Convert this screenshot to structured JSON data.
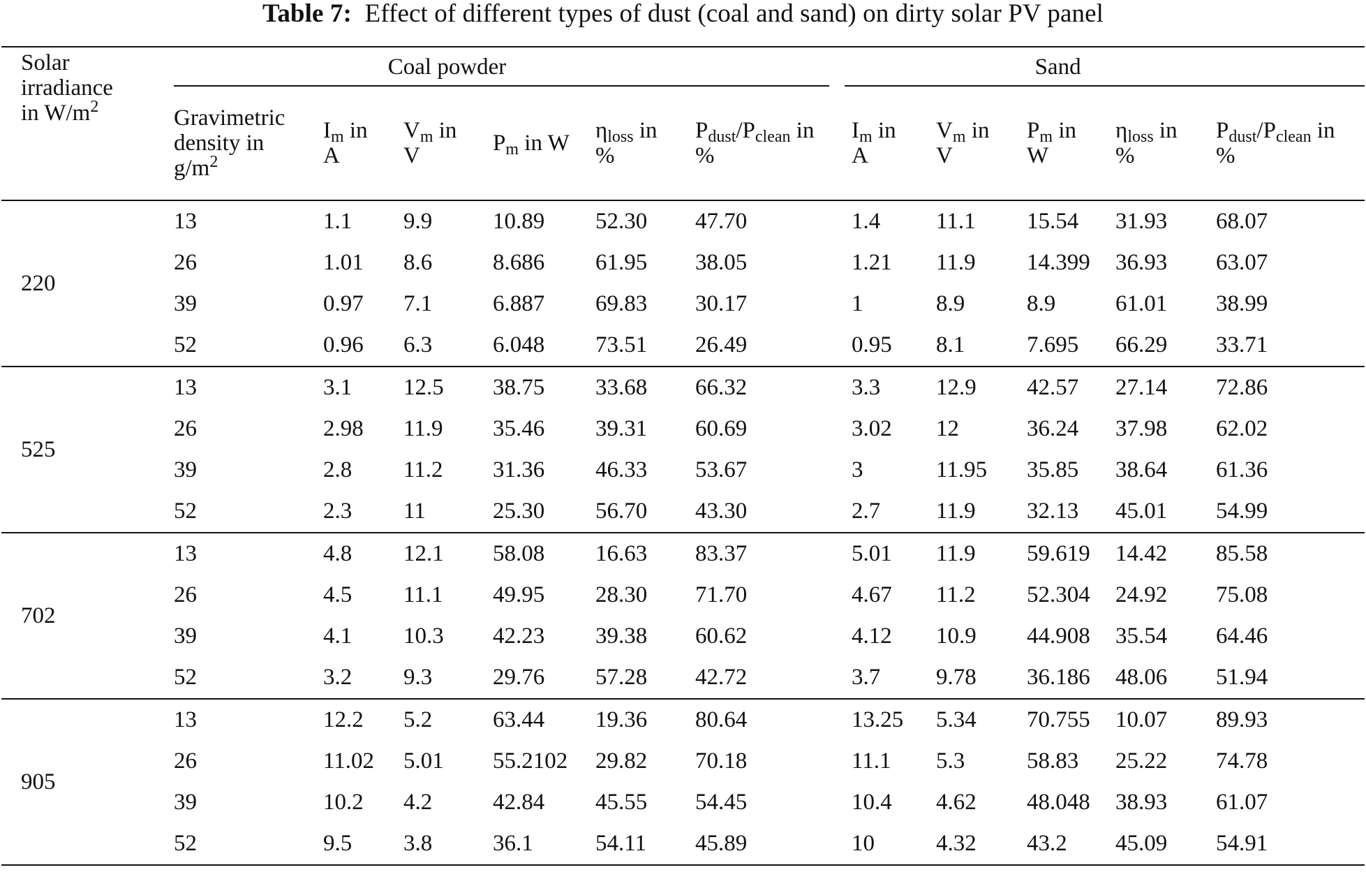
{
  "title": {
    "label": "Table 7:",
    "text": "Effect of different types of dust (coal and sand) on dirty solar PV panel"
  },
  "header": {
    "irradiance": {
      "line1": "Solar",
      "line2": "irradiance",
      "line3": "in W/m",
      "sup": "2"
    },
    "coal_group": "Coal powder",
    "sand_group": "Sand",
    "density": {
      "line1": "Gravimetric",
      "line2": "density in",
      "line3": "g/m",
      "sup": "2"
    },
    "im": {
      "sym": "I",
      "sub": "m",
      "unit_a": " in",
      "unit_b": "A"
    },
    "vm": {
      "sym": "V",
      "sub": "m",
      "unit_a": " in",
      "unit_b": "V"
    },
    "pm_coal": {
      "sym": "P",
      "sub": "m",
      "unit": " in W"
    },
    "pm_sand": {
      "sym": "P",
      "sub": "m",
      "unit_a": " in",
      "unit_b": "W"
    },
    "eta": {
      "sym": "η",
      "sub": "loss",
      "unit_a": " in",
      "unit_b": "%"
    },
    "ratio": {
      "sym1": "P",
      "sub1": "dust",
      "slash": "/P",
      "sub2": "clean",
      "unit_a": " in",
      "unit_b": "%"
    }
  },
  "groups": [
    {
      "irradiance": "220",
      "rows": [
        [
          "13",
          "1.1",
          "9.9",
          "10.89",
          "52.30",
          "47.70",
          "1.4",
          "11.1",
          "15.54",
          "31.93",
          "68.07"
        ],
        [
          "26",
          "1.01",
          "8.6",
          "8.686",
          "61.95",
          "38.05",
          "1.21",
          "11.9",
          "14.399",
          "36.93",
          "63.07"
        ],
        [
          "39",
          "0.97",
          "7.1",
          "6.887",
          "69.83",
          "30.17",
          "1",
          "8.9",
          "8.9",
          "61.01",
          "38.99"
        ],
        [
          "52",
          "0.96",
          "6.3",
          "6.048",
          "73.51",
          "26.49",
          "0.95",
          "8.1",
          "7.695",
          "66.29",
          "33.71"
        ]
      ]
    },
    {
      "irradiance": "525",
      "rows": [
        [
          "13",
          "3.1",
          "12.5",
          "38.75",
          "33.68",
          "66.32",
          "3.3",
          "12.9",
          "42.57",
          "27.14",
          "72.86"
        ],
        [
          "26",
          "2.98",
          "11.9",
          "35.46",
          "39.31",
          "60.69",
          "3.02",
          "12",
          "36.24",
          "37.98",
          "62.02"
        ],
        [
          "39",
          "2.8",
          "11.2",
          "31.36",
          "46.33",
          "53.67",
          "3",
          "11.95",
          "35.85",
          "38.64",
          "61.36"
        ],
        [
          "52",
          "2.3",
          "11",
          "25.30",
          "56.70",
          "43.30",
          "2.7",
          "11.9",
          "32.13",
          "45.01",
          "54.99"
        ]
      ]
    },
    {
      "irradiance": "702",
      "rows": [
        [
          "13",
          "4.8",
          "12.1",
          "58.08",
          "16.63",
          "83.37",
          "5.01",
          "11.9",
          "59.619",
          "14.42",
          "85.58"
        ],
        [
          "26",
          "4.5",
          "11.1",
          "49.95",
          "28.30",
          "71.70",
          "4.67",
          "11.2",
          "52.304",
          "24.92",
          "75.08"
        ],
        [
          "39",
          "4.1",
          "10.3",
          "42.23",
          "39.38",
          "60.62",
          "4.12",
          "10.9",
          "44.908",
          "35.54",
          "64.46"
        ],
        [
          "52",
          "3.2",
          "9.3",
          "29.76",
          "57.28",
          "42.72",
          "3.7",
          "9.78",
          "36.186",
          "48.06",
          "51.94"
        ]
      ]
    },
    {
      "irradiance": "905",
      "rows": [
        [
          "13",
          "12.2",
          "5.2",
          "63.44",
          "19.36",
          "80.64",
          "13.25",
          "5.34",
          "70.755",
          "10.07",
          "89.93"
        ],
        [
          "26",
          "11.02",
          "5.01",
          "55.2102",
          "29.82",
          "70.18",
          "11.1",
          "5.3",
          "58.83",
          "25.22",
          "74.78"
        ],
        [
          "39",
          "10.2",
          "4.2",
          "42.84",
          "45.55",
          "54.45",
          "10.4",
          "4.62",
          "48.048",
          "38.93",
          "61.07"
        ],
        [
          "52",
          "9.5",
          "3.8",
          "36.1",
          "54.11",
          "45.89",
          "10",
          "4.32",
          "43.2",
          "45.09",
          "54.91"
        ]
      ]
    }
  ]
}
